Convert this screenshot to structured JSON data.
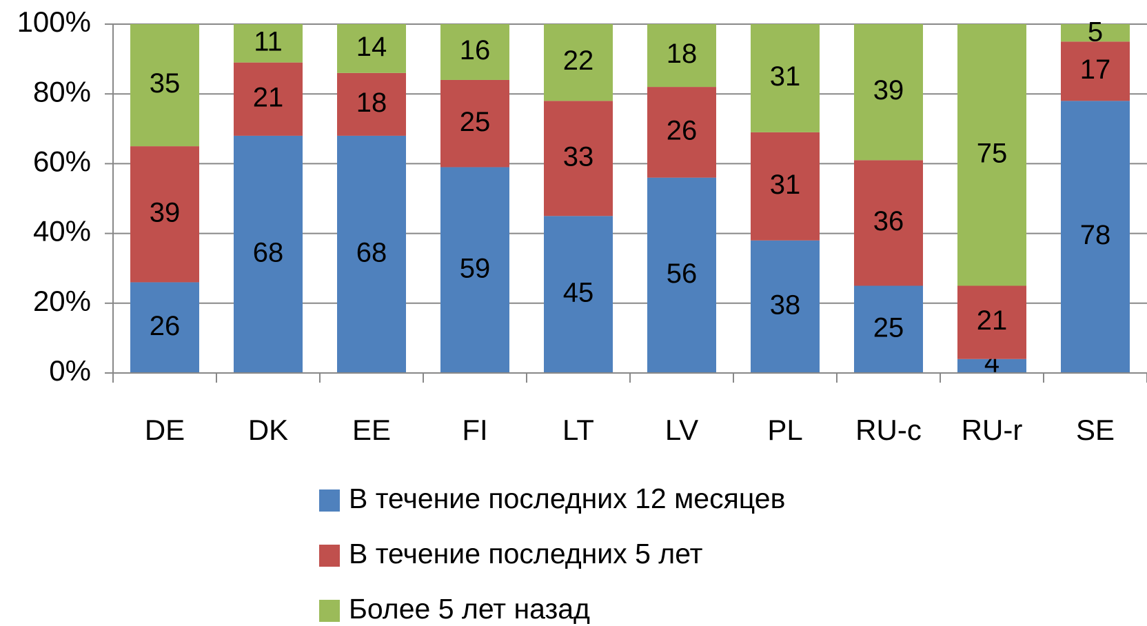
{
  "chart_data": {
    "type": "stacked_bar_100",
    "categories": [
      "DE",
      "DK",
      "EE",
      "FI",
      "LT",
      "LV",
      "PL",
      "RU-c",
      "RU-r",
      "SE"
    ],
    "series": [
      {
        "name": "В течение последних 12 месяцев",
        "color": "#4f81bd",
        "values": [
          26,
          68,
          68,
          59,
          45,
          56,
          38,
          25,
          4,
          78
        ]
      },
      {
        "name": "В течение последних 5 лет",
        "color": "#c0504d",
        "values": [
          39,
          21,
          18,
          25,
          33,
          26,
          31,
          36,
          21,
          17
        ]
      },
      {
        "name": "Более 5 лет назад",
        "color": "#9bbb59",
        "values": [
          35,
          11,
          14,
          16,
          22,
          18,
          31,
          39,
          75,
          5
        ]
      }
    ],
    "ylim": [
      0,
      100
    ],
    "yticks": [
      {
        "value": 0,
        "label": "0%"
      },
      {
        "value": 20,
        "label": "20%"
      },
      {
        "value": 40,
        "label": "40%"
      },
      {
        "value": 60,
        "label": "60%"
      },
      {
        "value": 80,
        "label": "80%"
      },
      {
        "value": 100,
        "label": "100%"
      }
    ],
    "grid": true,
    "legend": "bottom"
  }
}
